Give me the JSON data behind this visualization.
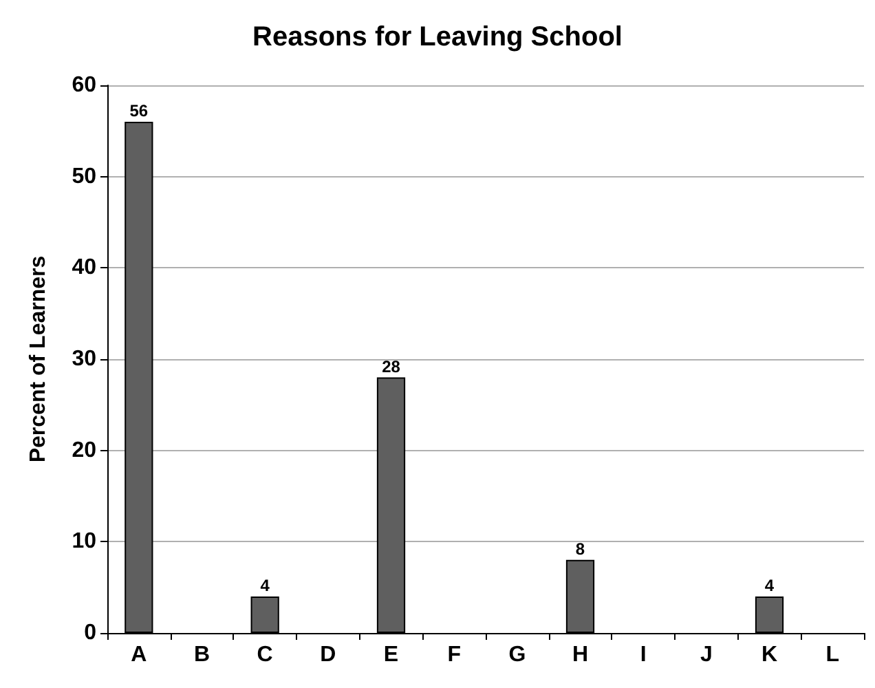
{
  "chart_data": {
    "type": "bar",
    "title": "Reasons for Leaving School",
    "ylabel": "Percent of Learners",
    "categories": [
      "A",
      "B",
      "C",
      "D",
      "E",
      "F",
      "G",
      "H",
      "I",
      "J",
      "K",
      "L"
    ],
    "values": [
      56,
      0,
      4,
      0,
      28,
      0,
      0,
      8,
      0,
      0,
      4,
      0
    ],
    "value_labels": [
      "56",
      null,
      "4",
      null,
      "28",
      null,
      null,
      "8",
      null,
      null,
      "4",
      null
    ],
    "color": "#5f5f5f",
    "ylim": [
      0,
      60
    ],
    "yticks": [
      0,
      10,
      20,
      30,
      40,
      50,
      60
    ],
    "grid": "y"
  }
}
